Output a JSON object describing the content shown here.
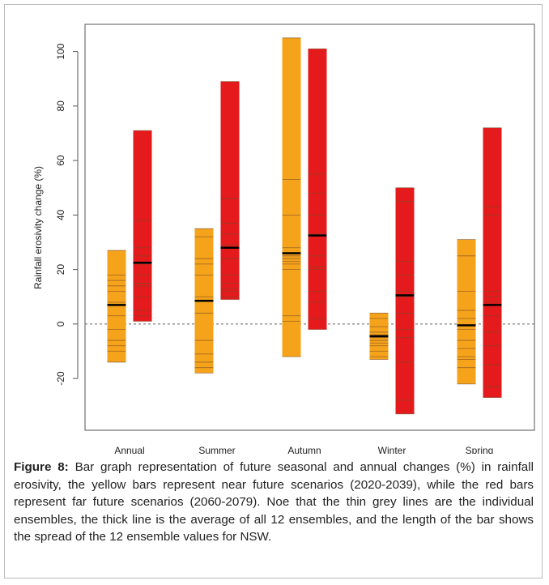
{
  "chart_data": {
    "type": "range-bar",
    "ylabel": "Rainfall erosivity change (%)",
    "categories": [
      "Annual",
      "Summer",
      "Autumn",
      "Winter",
      "Spring"
    ],
    "series": [
      {
        "color": "#f5a31a",
        "low": [
          -14,
          -18,
          -12,
          -13,
          -22
        ],
        "high": [
          27,
          35,
          105,
          4,
          31
        ],
        "mean": [
          7,
          8.5,
          26,
          -4.5,
          -0.5
        ],
        "ensembles": [
          [
            27,
            18,
            16,
            14,
            12,
            8,
            3,
            -2,
            -6,
            -8,
            -10,
            -14
          ],
          [
            35,
            32,
            24,
            22,
            18,
            10,
            4,
            -6,
            -11,
            -14,
            -16,
            -18
          ],
          [
            105,
            53,
            40,
            28,
            25,
            24,
            23,
            22,
            20,
            3,
            1,
            -12
          ],
          [
            4,
            2,
            -1,
            -3,
            -4,
            -5,
            -6,
            -7,
            -8,
            -10,
            -12,
            -13
          ],
          [
            31,
            25,
            12,
            5,
            2,
            -2,
            -6,
            -9,
            -12,
            -13,
            -16,
            -22
          ]
        ]
      },
      {
        "color": "#e41a1c",
        "low": [
          1,
          9,
          -2,
          -33,
          -27
        ],
        "high": [
          71,
          89,
          101,
          50,
          72
        ],
        "mean": [
          22.5,
          28,
          32.5,
          10.5,
          7
        ],
        "ensembles": [
          [
            71,
            38,
            28,
            25,
            22,
            18,
            15,
            14,
            10,
            5,
            3,
            1
          ],
          [
            89,
            46,
            37,
            33,
            29,
            24,
            18,
            15,
            13,
            12,
            10,
            9
          ],
          [
            101,
            55,
            48,
            40,
            33,
            25,
            21,
            20,
            12,
            8,
            2,
            -2
          ],
          [
            50,
            45,
            23,
            18,
            12,
            10,
            4,
            -2,
            -5,
            -14,
            -28,
            -33
          ],
          [
            72,
            43,
            40,
            12,
            10,
            8,
            3,
            -3,
            -8,
            -15,
            -23,
            -27
          ]
        ]
      }
    ],
    "ylim": [
      -39,
      110
    ],
    "yticks": [
      -20,
      0,
      20,
      40,
      60,
      80,
      100
    ],
    "reference_line": 0
  },
  "caption": {
    "label": "Figure 8:",
    "text": "Bar graph representation of future seasonal and annual changes (%) in rainfall erosivity, the yellow bars represent near future scenarios (2020-2039), while the red bars represent far future scenarios (2060-2079). Noe that the thin grey lines are the individual ensembles, the thick line is the average of all 12 ensembles, and the length of the bar shows the spread of the 12 ensemble values for NSW."
  }
}
